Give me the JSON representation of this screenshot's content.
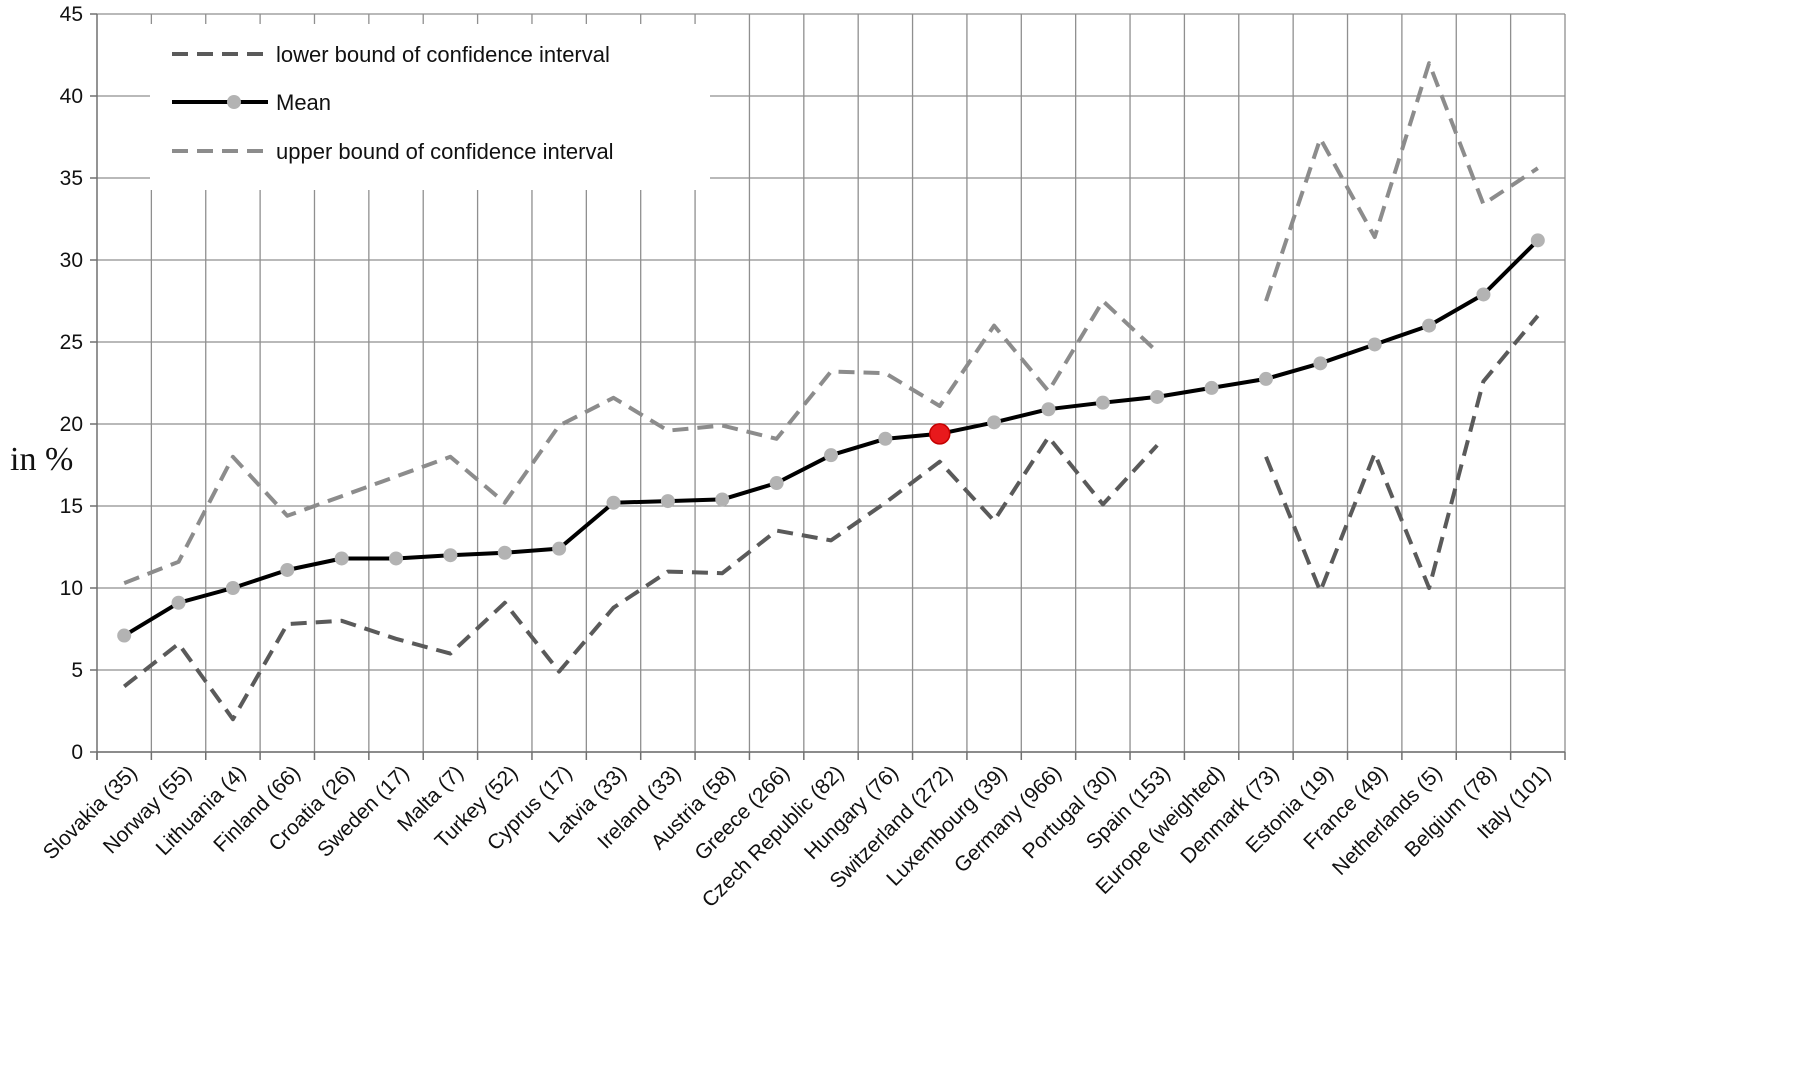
{
  "chart_data": {
    "type": "line",
    "title": "",
    "xlabel": "",
    "ylabel": "in %",
    "ylim": [
      0,
      45
    ],
    "yticks": [
      0,
      5,
      10,
      15,
      20,
      25,
      30,
      35,
      40,
      45
    ],
    "grid": true,
    "legend_position": "top-left",
    "categories": [
      "Slovakia (35)",
      "Norway (55)",
      "Lithuania (4)",
      "Finland (66)",
      "Croatia (26)",
      "Sweden (17)",
      "Malta (7)",
      "Turkey (52)",
      "Cyprus (17)",
      "Latvia (33)",
      "Ireland (33)",
      "Austria (58)",
      "Greece (266)",
      "Czech Republic (82)",
      "Hungary (76)",
      "Switzerland (272)",
      "Luxembourg (39)",
      "Germany (966)",
      "Portugal (30)",
      "Spain (153)",
      "Europe (weighted)",
      "Denmark (73)",
      "Estonia (19)",
      "France (49)",
      "Netherlands (5)",
      "Belgium (78)",
      "Italy (101)"
    ],
    "highlight_category": "Switzerland (272)",
    "series": [
      {
        "name": "lower bound of confidence interval",
        "style": "dashed",
        "color": "#5a5a5a",
        "values": [
          4.0,
          6.6,
          2.0,
          7.8,
          8.0,
          6.9,
          6.0,
          9.1,
          4.9,
          8.8,
          11.0,
          10.9,
          13.5,
          12.9,
          15.2,
          17.7,
          14.1,
          19.2,
          15.1,
          18.7,
          null,
          18.0,
          9.8,
          18.2,
          10.0,
          22.6,
          26.6
        ]
      },
      {
        "name": "Mean",
        "style": "solid",
        "color": "#000000",
        "marker_color": "#b3b3b3",
        "highlight_color": "#e8191c",
        "values": [
          7.1,
          9.1,
          10.0,
          11.1,
          11.8,
          11.8,
          12.0,
          12.15,
          12.4,
          15.2,
          15.3,
          15.4,
          16.4,
          18.1,
          19.1,
          19.4,
          20.1,
          20.9,
          21.3,
          21.65,
          22.2,
          22.75,
          23.7,
          24.85,
          26.0,
          27.9,
          31.2
        ]
      },
      {
        "name": "upper bound of confidence interval",
        "style": "dashed",
        "color": "#8c8c8c",
        "values": [
          10.3,
          11.6,
          18.0,
          14.4,
          15.6,
          16.8,
          18.0,
          15.2,
          19.9,
          21.6,
          19.6,
          19.9,
          19.1,
          23.2,
          23.1,
          21.1,
          26.0,
          22.0,
          27.5,
          24.4,
          null,
          27.5,
          37.4,
          31.4,
          42.0,
          33.4,
          35.6
        ]
      }
    ]
  }
}
